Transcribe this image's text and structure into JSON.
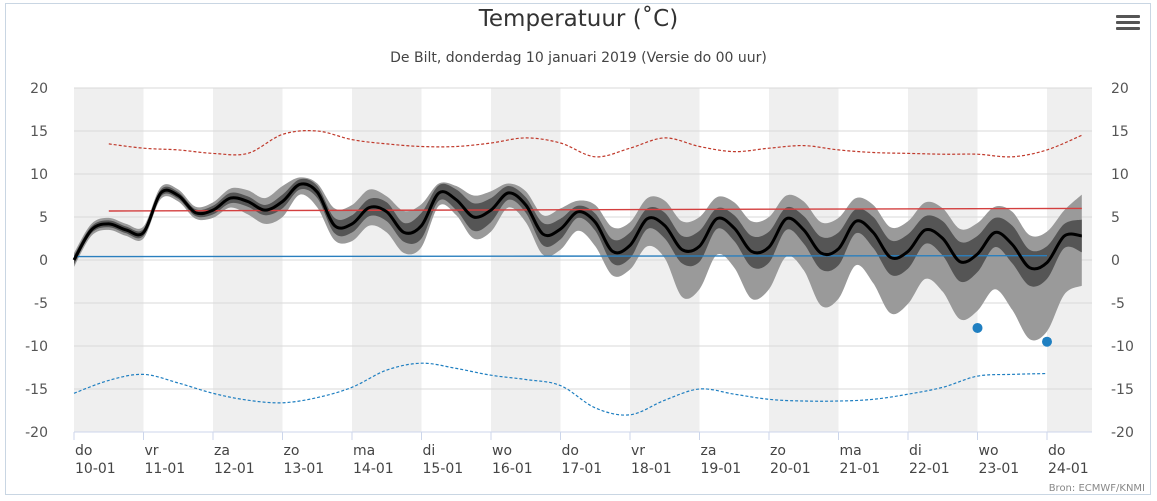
{
  "title": "Temperatuur (˚C)",
  "subtitle": "De Bilt, donderdag 10 januari 2019 (Versie do 00 uur)",
  "credits": "Bron: ECMWF/KNMI",
  "menu_icon": "hamburger-menu-icon",
  "chart_data": {
    "type": "line",
    "title": "Temperatuur (˚C)",
    "subtitle": "De Bilt, donderdag 10 januari 2019 (Versie do 00 uur)",
    "x_categories": [
      {
        "day": "do",
        "date": "10-01"
      },
      {
        "day": "vr",
        "date": "11-01"
      },
      {
        "day": "za",
        "date": "12-01"
      },
      {
        "day": "zo",
        "date": "13-01"
      },
      {
        "day": "ma",
        "date": "14-01"
      },
      {
        "day": "di",
        "date": "15-01"
      },
      {
        "day": "wo",
        "date": "16-01"
      },
      {
        "day": "do",
        "date": "17-01"
      },
      {
        "day": "vr",
        "date": "18-01"
      },
      {
        "day": "za",
        "date": "19-01"
      },
      {
        "day": "zo",
        "date": "20-01"
      },
      {
        "day": "ma",
        "date": "21-01"
      },
      {
        "day": "di",
        "date": "22-01"
      },
      {
        "day": "wo",
        "date": "23-01"
      },
      {
        "day": "do",
        "date": "24-01"
      }
    ],
    "x_range_days": [
      0,
      14.5
    ],
    "ylim": [
      -20,
      20
    ],
    "yticks": [
      20,
      15,
      10,
      5,
      0,
      -5,
      -10,
      -15,
      -20
    ],
    "grid": true,
    "colors": {
      "median": "#000000",
      "band_inner": "#555555",
      "band_outer": "#9a9a9a",
      "normal_max": "#d33f3f",
      "normal_min": "#2a7fbe",
      "record_max": "#c0392b",
      "record_min": "#1f7fc1",
      "day_stripe": "#efefef"
    },
    "series": {
      "median": {
        "x": [
          0.0,
          0.25,
          0.5,
          0.75,
          1.0,
          1.25,
          1.5,
          1.75,
          2.0,
          2.25,
          2.5,
          2.75,
          3.0,
          3.25,
          3.5,
          3.75,
          4.0,
          4.25,
          4.5,
          4.75,
          5.0,
          5.25,
          5.5,
          5.75,
          6.0,
          6.25,
          6.5,
          6.75,
          7.0,
          7.25,
          7.5,
          7.75,
          8.0,
          8.25,
          8.5,
          8.75,
          9.0,
          9.25,
          9.5,
          9.75,
          10.0,
          10.25,
          10.5,
          10.75,
          11.0,
          11.25,
          11.5,
          11.75,
          12.0,
          12.25,
          12.5,
          12.75,
          13.0,
          13.25,
          13.5,
          13.75,
          14.0,
          14.25,
          14.5
        ],
        "y": [
          0.0,
          3.5,
          4.2,
          3.5,
          3.2,
          7.8,
          7.5,
          5.5,
          5.8,
          7.2,
          6.8,
          5.8,
          6.8,
          8.8,
          7.9,
          4.0,
          4.2,
          6.1,
          5.6,
          3.2,
          4.0,
          7.8,
          7.0,
          5.0,
          5.8,
          7.8,
          6.4,
          3.0,
          3.6,
          5.6,
          4.4,
          1.0,
          1.7,
          4.8,
          4.0,
          1.2,
          1.6,
          4.8,
          3.7,
          1.0,
          1.5,
          4.8,
          3.5,
          0.8,
          1.3,
          4.5,
          3.2,
          0.3,
          1.0,
          3.5,
          2.5,
          -0.2,
          0.7,
          3.2,
          1.8,
          -0.9,
          -0.3,
          2.8,
          2.8
        ]
      },
      "band_inner_upper": [
        0.5,
        3.9,
        4.6,
        3.9,
        3.6,
        8.2,
        7.9,
        5.9,
        6.3,
        7.8,
        7.4,
        6.4,
        7.6,
        9.4,
        8.6,
        4.9,
        5.2,
        7.1,
        6.7,
        4.3,
        5.5,
        8.7,
        8.2,
        6.6,
        7.2,
        8.6,
        7.3,
        4.3,
        4.8,
        6.3,
        5.4,
        2.4,
        3.2,
        6.0,
        5.5,
        2.8,
        3.4,
        6.0,
        5.2,
        2.8,
        3.3,
        6.1,
        5.1,
        2.7,
        3.2,
        5.9,
        5.0,
        2.3,
        3.0,
        5.1,
        4.5,
        2.1,
        2.8,
        4.9,
        4.0,
        1.2,
        1.6,
        4.2,
        4.7
      ],
      "band_inner_lower": [
        -0.5,
        3.1,
        3.8,
        3.1,
        2.8,
        7.4,
        7.1,
        5.1,
        5.3,
        6.6,
        6.2,
        5.2,
        6.0,
        8.2,
        7.2,
        3.1,
        3.2,
        5.1,
        4.5,
        2.1,
        2.5,
        6.9,
        5.8,
        3.4,
        4.4,
        7.0,
        5.5,
        1.7,
        2.4,
        4.9,
        3.4,
        -0.4,
        0.2,
        3.6,
        2.5,
        -0.4,
        -0.2,
        3.6,
        2.2,
        -0.8,
        -0.3,
        3.5,
        1.9,
        -1.1,
        -0.6,
        3.1,
        1.4,
        -1.7,
        -1.0,
        1.9,
        0.5,
        -2.5,
        -1.4,
        1.5,
        -0.4,
        -3.0,
        -2.2,
        1.4,
        0.9
      ],
      "band_outer_upper": [
        0.8,
        4.2,
        4.9,
        4.2,
        3.9,
        8.5,
        8.2,
        6.2,
        6.7,
        8.3,
        8.1,
        7.2,
        8.6,
        9.6,
        8.9,
        6.0,
        6.4,
        8.2,
        7.4,
        5.7,
        6.5,
        8.9,
        8.6,
        7.5,
        8.0,
        8.9,
        8.0,
        5.2,
        6.0,
        6.9,
        6.4,
        3.8,
        4.4,
        7.2,
        6.9,
        4.5,
        5.0,
        7.3,
        6.7,
        4.5,
        5.0,
        7.5,
        6.8,
        4.4,
        4.9,
        7.2,
        6.4,
        3.8,
        4.5,
        6.7,
        6.0,
        3.6,
        4.3,
        6.2,
        5.6,
        2.9,
        3.3,
        5.8,
        7.6
      ],
      "band_outer_lower": [
        -0.8,
        2.8,
        3.5,
        2.8,
        2.5,
        7.1,
        6.8,
        4.8,
        4.9,
        6.1,
        5.3,
        4.2,
        5.0,
        7.6,
        6.1,
        2.3,
        2.2,
        4.0,
        3.2,
        0.8,
        1.5,
        6.3,
        5.2,
        2.5,
        3.3,
        6.1,
        4.4,
        0.6,
        1.2,
        3.4,
        1.6,
        -1.8,
        -1.1,
        1.6,
        0.2,
        -4.3,
        -3.4,
        0.6,
        -0.9,
        -4.5,
        -3.4,
        0.4,
        -1.2,
        -5.3,
        -4.5,
        -0.6,
        -2.7,
        -6.2,
        -5.1,
        -2.2,
        -3.7,
        -6.9,
        -5.9,
        -3.4,
        -5.8,
        -9.2,
        -8.3,
        -4.0,
        -3.0
      ],
      "normal_max": {
        "x": [
          0.5,
          14.5
        ],
        "y": [
          5.7,
          6.0
        ]
      },
      "normal_min": {
        "x": [
          0.0,
          14.0
        ],
        "y": [
          0.4,
          0.5
        ]
      },
      "record_max": {
        "x": [
          0.5,
          1.0,
          1.5,
          2.0,
          2.5,
          3.0,
          3.5,
          4.0,
          4.5,
          5.0,
          5.5,
          6.0,
          6.5,
          7.0,
          7.5,
          8.0,
          8.5,
          9.0,
          9.5,
          10.0,
          10.5,
          11.0,
          11.5,
          12.0,
          12.5,
          13.0,
          13.5,
          14.0,
          14.5
        ],
        "y": [
          13.5,
          13.0,
          12.8,
          12.4,
          12.4,
          14.6,
          15.0,
          14.0,
          13.5,
          13.2,
          13.2,
          13.6,
          14.2,
          13.6,
          12.0,
          13.0,
          14.2,
          13.2,
          12.6,
          13.0,
          13.3,
          12.8,
          12.5,
          12.4,
          12.3,
          12.3,
          12.0,
          12.8,
          14.5
        ]
      },
      "record_min": {
        "x": [
          0.0,
          0.5,
          1.0,
          1.5,
          2.0,
          2.5,
          3.0,
          3.5,
          4.0,
          4.5,
          5.0,
          5.5,
          6.0,
          6.5,
          7.0,
          7.5,
          8.0,
          8.5,
          9.0,
          9.5,
          10.0,
          10.5,
          11.0,
          11.5,
          12.0,
          12.5,
          13.0,
          13.5,
          14.0
        ],
        "y": [
          -15.5,
          -14.0,
          -13.3,
          -14.3,
          -15.5,
          -16.3,
          -16.6,
          -16.0,
          -14.8,
          -12.8,
          -12.0,
          -12.6,
          -13.4,
          -13.9,
          -14.6,
          -17.2,
          -18.0,
          -16.3,
          -15.0,
          -15.6,
          -16.2,
          -16.4,
          -16.4,
          -16.2,
          -15.6,
          -14.8,
          -13.5,
          -13.3,
          -13.2
        ]
      },
      "markers": [
        {
          "x": 13.0,
          "y": -7.9
        },
        {
          "x": 14.0,
          "y": -9.5
        }
      ]
    }
  }
}
